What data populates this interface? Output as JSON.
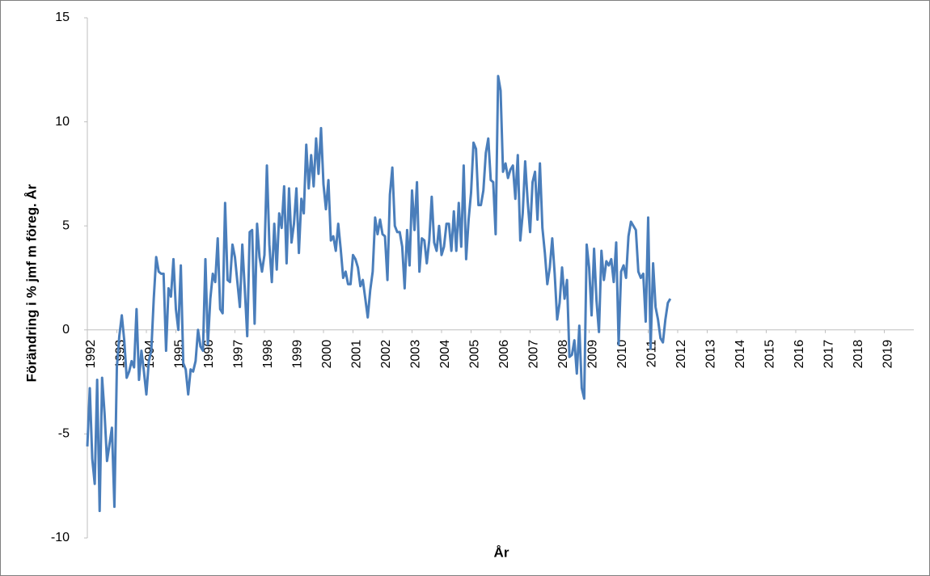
{
  "chart_data": {
    "type": "line",
    "x_label": "År",
    "y_label": "Förändring i % jmf m föreg. År",
    "color": "#4a7ebb",
    "xlim": [
      1992,
      2020
    ],
    "xticks": [
      1992,
      1993,
      1994,
      1995,
      1996,
      1997,
      1998,
      1999,
      2000,
      2001,
      2002,
      2003,
      2004,
      2005,
      2006,
      2007,
      2008,
      2009,
      2010,
      2011,
      2012,
      2013,
      2014,
      2015,
      2016,
      2017,
      2018,
      2019
    ],
    "ylim": [
      -10,
      15
    ],
    "yticks": [
      -10,
      -5,
      0,
      5,
      10,
      15
    ],
    "x": [
      1992,
      1992.083,
      1992.167,
      1992.25,
      1992.333,
      1992.417,
      1992.5,
      1992.583,
      1992.667,
      1992.75,
      1992.833,
      1992.917,
      1993,
      1993.083,
      1993.167,
      1993.25,
      1993.333,
      1993.417,
      1993.5,
      1993.583,
      1993.667,
      1993.75,
      1993.833,
      1993.917,
      1994,
      1994.083,
      1994.167,
      1994.25,
      1994.333,
      1994.417,
      1994.5,
      1994.583,
      1994.667,
      1994.75,
      1994.833,
      1994.917,
      1995,
      1995.083,
      1995.167,
      1995.25,
      1995.333,
      1995.417,
      1995.5,
      1995.583,
      1995.667,
      1995.75,
      1995.833,
      1995.917,
      1996,
      1996.083,
      1996.167,
      1996.25,
      1996.333,
      1996.417,
      1996.5,
      1996.583,
      1996.667,
      1996.75,
      1996.833,
      1996.917,
      1997,
      1997.083,
      1997.167,
      1997.25,
      1997.333,
      1997.417,
      1997.5,
      1997.583,
      1997.667,
      1997.75,
      1997.833,
      1997.917,
      1998,
      1998.083,
      1998.167,
      1998.25,
      1998.333,
      1998.417,
      1998.5,
      1998.583,
      1998.667,
      1998.75,
      1998.833,
      1998.917,
      1999,
      1999.083,
      1999.167,
      1999.25,
      1999.333,
      1999.417,
      1999.5,
      1999.583,
      1999.667,
      1999.75,
      1999.833,
      1999.917,
      2000,
      2000.083,
      2000.167,
      2000.25,
      2000.333,
      2000.417,
      2000.5,
      2000.583,
      2000.667,
      2000.75,
      2000.833,
      2000.917,
      2001,
      2001.083,
      2001.167,
      2001.25,
      2001.333,
      2001.417,
      2001.5,
      2001.583,
      2001.667,
      2001.75,
      2001.833,
      2001.917,
      2002,
      2002.083,
      2002.167,
      2002.25,
      2002.333,
      2002.417,
      2002.5,
      2002.583,
      2002.667,
      2002.75,
      2002.833,
      2002.917,
      2003,
      2003.083,
      2003.167,
      2003.25,
      2003.333,
      2003.417,
      2003.5,
      2003.583,
      2003.667,
      2003.75,
      2003.833,
      2003.917,
      2004,
      2004.083,
      2004.167,
      2004.25,
      2004.333,
      2004.417,
      2004.5,
      2004.583,
      2004.667,
      2004.75,
      2004.833,
      2004.917,
      2005,
      2005.083,
      2005.167,
      2005.25,
      2005.333,
      2005.417,
      2005.5,
      2005.583,
      2005.667,
      2005.75,
      2005.833,
      2005.917,
      2006,
      2006.083,
      2006.167,
      2006.25,
      2006.333,
      2006.417,
      2006.5,
      2006.583,
      2006.667,
      2006.75,
      2006.833,
      2006.917,
      2007,
      2007.083,
      2007.167,
      2007.25,
      2007.333,
      2007.417,
      2007.5,
      2007.583,
      2007.667,
      2007.75,
      2007.833,
      2007.917,
      2008,
      2008.083,
      2008.167,
      2008.25,
      2008.333,
      2008.417,
      2008.5,
      2008.583,
      2008.667,
      2008.75,
      2008.833,
      2008.917,
      2009,
      2009.083,
      2009.167,
      2009.25,
      2009.333,
      2009.417,
      2009.5,
      2009.583,
      2009.667,
      2009.75,
      2009.833,
      2009.917,
      2010,
      2010.083,
      2010.167,
      2010.25,
      2010.333,
      2010.417,
      2010.5,
      2010.583,
      2010.667,
      2010.75,
      2010.833,
      2010.917,
      2011,
      2011.083,
      2011.167,
      2011.25,
      2011.333,
      2011.417,
      2011.5,
      2011.583,
      2011.667,
      2011.75
    ],
    "values": [
      -5.6,
      -2.8,
      -6.2,
      -7.4,
      -2.4,
      -8.7,
      -2.3,
      -4,
      -6.3,
      -5.5,
      -4.7,
      -8.5,
      -1.8,
      -0.3,
      0.7,
      -0.5,
      -2.3,
      -2,
      -1.5,
      -1.8,
      1,
      -2.4,
      -1,
      -2,
      -3.1,
      -1.5,
      -1,
      1.5,
      3.5,
      2.8,
      2.7,
      2.7,
      -1,
      2,
      1.6,
      3.4,
      1,
      0,
      3.1,
      -1.6,
      -1.9,
      -3.1,
      -1.9,
      -2,
      -1.5,
      0,
      -0.8,
      -1,
      3.4,
      -0.7,
      1.5,
      2.7,
      2.3,
      4.4,
      1,
      0.8,
      6.1,
      2.4,
      2.3,
      4.1,
      3.5,
      2.3,
      1.1,
      4.1,
      2,
      -0.3,
      4.7,
      4.8,
      0.3,
      5.1,
      3.5,
      2.8,
      3.6,
      7.9,
      4.1,
      2.3,
      5.1,
      2.9,
      5.6,
      4.9,
      6.9,
      3.2,
      6.8,
      4.2,
      5.1,
      6.8,
      3.7,
      6.3,
      5.6,
      8.9,
      6.8,
      8.4,
      6.9,
      9.2,
      7.5,
      9.7,
      7,
      5.8,
      7.2,
      4.3,
      4.5,
      3.8,
      5.1,
      3.9,
      2.5,
      2.8,
      2.2,
      2.2,
      3.6,
      3.4,
      3,
      2.1,
      2.4,
      1.5,
      0.6,
      1.9,
      2.8,
      5.4,
      4.6,
      5.3,
      4.6,
      4.5,
      2.4,
      6.5,
      7.8,
      5,
      4.7,
      4.7,
      4,
      2,
      4.8,
      3.1,
      6.7,
      4.8,
      7.1,
      2.8,
      4.4,
      4.3,
      3.2,
      4.3,
      6.4,
      4.2,
      3.8,
      5,
      3.6,
      4,
      5.1,
      5.1,
      3.8,
      5.7,
      3.8,
      6.1,
      4,
      7.9,
      3.4,
      5.3,
      6.6,
      9,
      8.7,
      6,
      6,
      6.7,
      8.5,
      9.2,
      7.2,
      7.1,
      4.6,
      12.2,
      11.5,
      7.6,
      8,
      7.3,
      7.7,
      7.9,
      6.3,
      8.4,
      4.3,
      5.6,
      8.1,
      6.2,
      4.7,
      7.1,
      7.6,
      5.3,
      8,
      4.9,
      3.7,
      2.2,
      3,
      4.4,
      2.7,
      0.5,
      1.3,
      3,
      1.5,
      2.4,
      -1.3,
      -1.2,
      -0.5,
      -2.1,
      0.2,
      -2.8,
      -3.3,
      4.1,
      3,
      0.7,
      3.9,
      1.4,
      -0.1,
      3.8,
      2.4,
      3.3,
      3.1,
      3.4,
      2.3,
      4.2,
      -0.7,
      2.8,
      3.1,
      2.5,
      4.5,
      5.2,
      5,
      4.8,
      2.8,
      2.5,
      2.7,
      0.4,
      5.4,
      -0.9,
      3.2,
      1.1,
      0.5,
      -0.4,
      -0.6,
      0.5,
      1.3,
      1.5
    ]
  }
}
